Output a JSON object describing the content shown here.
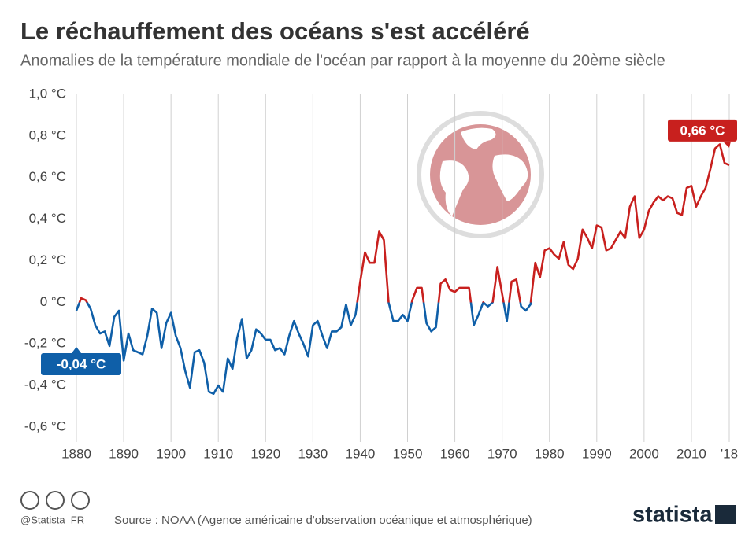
{
  "chart_data": {
    "type": "line",
    "title": "Le réchauffement des océans s'est accéléré",
    "subtitle": "Anomalies de la température mondiale de l'océan par rapport à la moyenne du 20ème siècle",
    "x": [
      1880,
      1881,
      1882,
      1883,
      1884,
      1885,
      1886,
      1887,
      1888,
      1889,
      1890,
      1891,
      1892,
      1893,
      1894,
      1895,
      1896,
      1897,
      1898,
      1899,
      1900,
      1901,
      1902,
      1903,
      1904,
      1905,
      1906,
      1907,
      1908,
      1909,
      1910,
      1911,
      1912,
      1913,
      1914,
      1915,
      1916,
      1917,
      1918,
      1919,
      1920,
      1921,
      1922,
      1923,
      1924,
      1925,
      1926,
      1927,
      1928,
      1929,
      1930,
      1931,
      1932,
      1933,
      1934,
      1935,
      1936,
      1937,
      1938,
      1939,
      1940,
      1941,
      1942,
      1943,
      1944,
      1945,
      1946,
      1947,
      1948,
      1949,
      1950,
      1951,
      1952,
      1953,
      1954,
      1955,
      1956,
      1957,
      1958,
      1959,
      1960,
      1961,
      1962,
      1963,
      1964,
      1965,
      1966,
      1967,
      1968,
      1969,
      1970,
      1971,
      1972,
      1973,
      1974,
      1975,
      1976,
      1977,
      1978,
      1979,
      1980,
      1981,
      1982,
      1983,
      1984,
      1985,
      1986,
      1987,
      1988,
      1989,
      1990,
      1991,
      1992,
      1993,
      1994,
      1995,
      1996,
      1997,
      1998,
      1999,
      2000,
      2001,
      2002,
      2003,
      2004,
      2005,
      2006,
      2007,
      2008,
      2009,
      2010,
      2011,
      2012,
      2013,
      2014,
      2015,
      2016,
      2017,
      2018
    ],
    "values": [
      -0.04,
      0.02,
      0.01,
      -0.03,
      -0.11,
      -0.15,
      -0.14,
      -0.21,
      -0.07,
      -0.04,
      -0.28,
      -0.15,
      -0.23,
      -0.24,
      -0.25,
      -0.16,
      -0.03,
      -0.05,
      -0.22,
      -0.1,
      -0.05,
      -0.16,
      -0.22,
      -0.33,
      -0.41,
      -0.24,
      -0.23,
      -0.29,
      -0.43,
      -0.44,
      -0.4,
      -0.43,
      -0.27,
      -0.32,
      -0.17,
      -0.08,
      -0.27,
      -0.23,
      -0.13,
      -0.15,
      -0.18,
      -0.18,
      -0.23,
      -0.22,
      -0.25,
      -0.16,
      -0.09,
      -0.15,
      -0.2,
      -0.26,
      -0.11,
      -0.09,
      -0.16,
      -0.22,
      -0.14,
      -0.14,
      -0.12,
      -0.01,
      -0.11,
      -0.06,
      0.1,
      0.24,
      0.19,
      0.19,
      0.34,
      0.3,
      0.0,
      -0.09,
      -0.09,
      -0.06,
      -0.09,
      0.01,
      0.07,
      0.07,
      -0.1,
      -0.14,
      -0.12,
      0.09,
      0.11,
      0.06,
      0.05,
      0.07,
      0.07,
      0.07,
      -0.11,
      -0.06,
      0.0,
      -0.02,
      0.0,
      0.17,
      0.04,
      -0.09,
      0.1,
      0.11,
      -0.02,
      -0.04,
      -0.01,
      0.19,
      0.12,
      0.25,
      0.26,
      0.23,
      0.21,
      0.29,
      0.18,
      0.16,
      0.21,
      0.35,
      0.31,
      0.26,
      0.37,
      0.36,
      0.25,
      0.26,
      0.3,
      0.34,
      0.31,
      0.46,
      0.51,
      0.31,
      0.35,
      0.44,
      0.48,
      0.51,
      0.49,
      0.51,
      0.5,
      0.43,
      0.42,
      0.55,
      0.56,
      0.46,
      0.51,
      0.55,
      0.64,
      0.74,
      0.76,
      0.67,
      0.66
    ],
    "colors": {
      "positive": "#c8201e",
      "negative": "#0f5fa8"
    },
    "xlim": [
      1880,
      2018
    ],
    "xticks": [
      1880,
      1890,
      1900,
      1910,
      1920,
      1930,
      1940,
      1950,
      1960,
      1970,
      1980,
      1990,
      2000,
      2010,
      {
        "value": 2018,
        "label": "'18"
      }
    ],
    "ylim": [
      -0.6,
      1.0
    ],
    "yticks": [
      {
        "value": -0.6,
        "label": "-0,6 °C"
      },
      {
        "value": -0.4,
        "label": "-0,4 °C"
      },
      {
        "value": -0.2,
        "label": "-0,2 °C"
      },
      {
        "value": 0,
        "label": "0 °C"
      },
      {
        "value": 0.2,
        "label": "0,2 °C"
      },
      {
        "value": 0.4,
        "label": "0,4 °C"
      },
      {
        "value": 0.6,
        "label": "0,6 °C"
      },
      {
        "value": 0.8,
        "label": "0,8 °C"
      },
      {
        "value": 1.0,
        "label": "1,0 °C"
      }
    ],
    "grid": "x",
    "annotations": [
      {
        "x": 1880,
        "value": -0.04,
        "label": "-0,04 °C"
      },
      {
        "x": 2018,
        "value": 0.66,
        "label": "0,66 °C"
      }
    ]
  },
  "footer": {
    "handle": "@Statista_FR",
    "source": "Source : NOAA (Agence américaine d'observation océanique et atmosphérique)",
    "logo": "statista"
  }
}
